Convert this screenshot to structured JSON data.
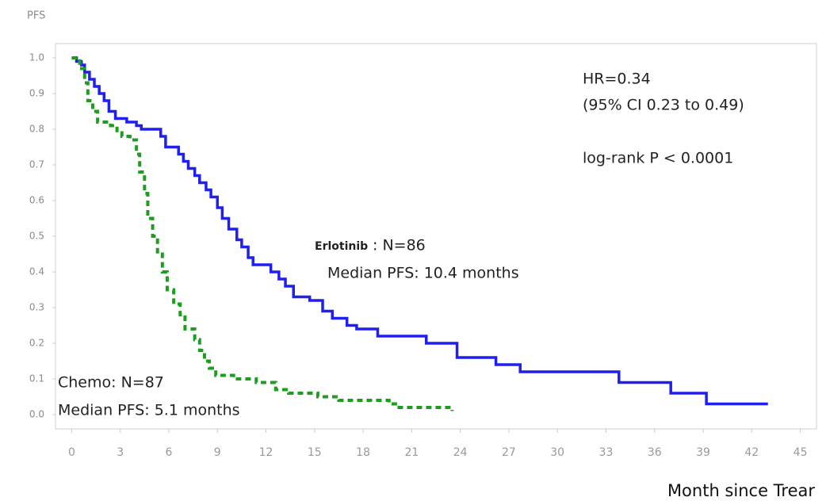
{
  "chart_data": {
    "type": "line",
    "drawstyle": "steps-post",
    "ylabel": "PFS",
    "xlabel": "Month since Trear",
    "annotations": [
      "HR=0.34",
      "(95% CI 0.23 to 0.49)",
      "log-rank P < 0.0001",
      ": N=86",
      "Median PFS: 10.4 months",
      "Chemo: N=87",
      "Median PFS: 5.1 months"
    ],
    "xlim": [
      -1,
      46
    ],
    "ylim": [
      -0.04,
      1.04
    ],
    "xticks": [
      0,
      3,
      6,
      9,
      12,
      15,
      18,
      21,
      24,
      27,
      30,
      33,
      36,
      39,
      42,
      45
    ],
    "yticks": [
      {
        "value": 0,
        "label": "0.0"
      },
      0.1,
      0.2,
      0.3,
      0.4,
      0.5,
      0.6,
      0.7,
      0.8,
      0.9,
      {
        "value": 1,
        "label": "1.0"
      }
    ],
    "series": [
      {
        "name": "Erlotinib",
        "color": "#1f1ff0",
        "dash": false,
        "x": [
          0,
          0.3,
          0.6,
          0.8,
          1.1,
          1.4,
          1.7,
          2.0,
          2.3,
          2.7,
          3.4,
          4.0,
          4.3,
          5.5,
          5.8,
          6.6,
          6.9,
          7.2,
          7.6,
          7.9,
          8.3,
          8.6,
          9.0,
          9.3,
          9.7,
          10.2,
          10.5,
          10.9,
          11.2,
          12.3,
          12.8,
          13.2,
          13.7,
          14.7,
          15.5,
          16.1,
          17.0,
          17.6,
          18.9,
          21.9,
          23.8,
          26.2,
          27.7,
          33.8,
          37.0,
          39.2,
          43.0
        ],
        "values": [
          1.0,
          0.99,
          0.98,
          0.96,
          0.94,
          0.92,
          0.9,
          0.88,
          0.85,
          0.83,
          0.82,
          0.81,
          0.8,
          0.78,
          0.75,
          0.73,
          0.71,
          0.69,
          0.67,
          0.65,
          0.63,
          0.61,
          0.58,
          0.55,
          0.52,
          0.49,
          0.47,
          0.44,
          0.42,
          0.4,
          0.38,
          0.36,
          0.33,
          0.32,
          0.29,
          0.27,
          0.25,
          0.24,
          0.22,
          0.2,
          0.16,
          0.14,
          0.12,
          0.09,
          0.06,
          0.03,
          0.03
        ]
      },
      {
        "color": "#1e9e1e",
        "dash": true,
        "x": [
          0,
          0.5,
          0.8,
          1.0,
          1.3,
          1.6,
          2.4,
          2.8,
          3.1,
          3.6,
          4.0,
          4.2,
          4.5,
          4.7,
          5.0,
          5.3,
          5.6,
          5.9,
          6.3,
          6.7,
          7.0,
          7.6,
          7.9,
          8.2,
          8.5,
          8.9,
          10.0,
          11.4,
          12.6,
          13.4,
          15.2,
          16.5,
          19.6,
          20.0,
          23.5
        ],
        "values": [
          1.0,
          0.97,
          0.93,
          0.88,
          0.85,
          0.82,
          0.81,
          0.79,
          0.78,
          0.77,
          0.73,
          0.68,
          0.62,
          0.55,
          0.5,
          0.45,
          0.4,
          0.35,
          0.31,
          0.28,
          0.24,
          0.21,
          0.18,
          0.15,
          0.13,
          0.11,
          0.1,
          0.09,
          0.07,
          0.06,
          0.05,
          0.04,
          0.03,
          0.02,
          0.01
        ]
      }
    ]
  }
}
